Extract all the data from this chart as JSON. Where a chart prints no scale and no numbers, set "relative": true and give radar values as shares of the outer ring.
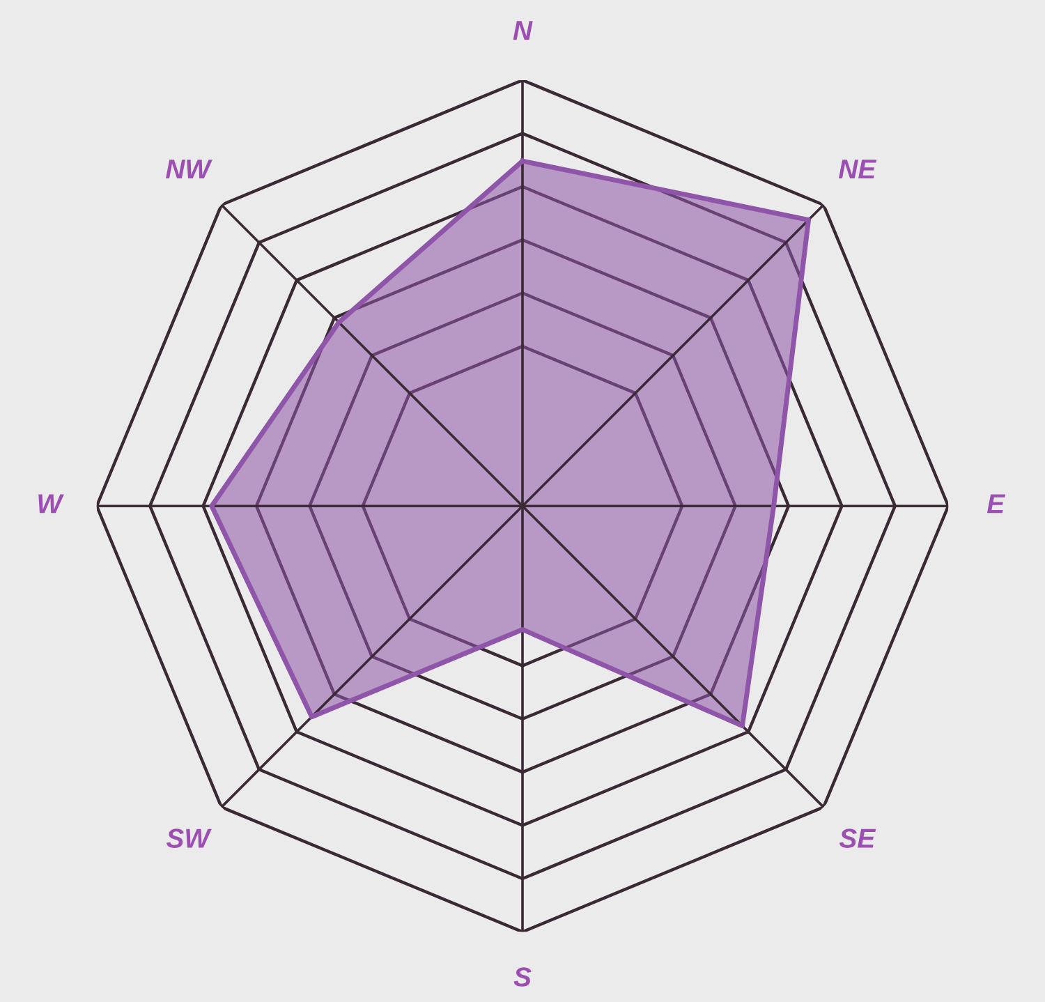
{
  "chart_data": {
    "type": "radar",
    "relative": true,
    "grid": true,
    "categories": [
      "N",
      "NE",
      "E",
      "SE",
      "S",
      "SW",
      "W",
      "NW"
    ],
    "series": [
      {
        "color": "#8e55a8",
        "values": [
          0.81,
          0.95,
          0.59,
          0.73,
          0.29,
          0.7,
          0.73,
          0.61
        ]
      }
    ]
  }
}
